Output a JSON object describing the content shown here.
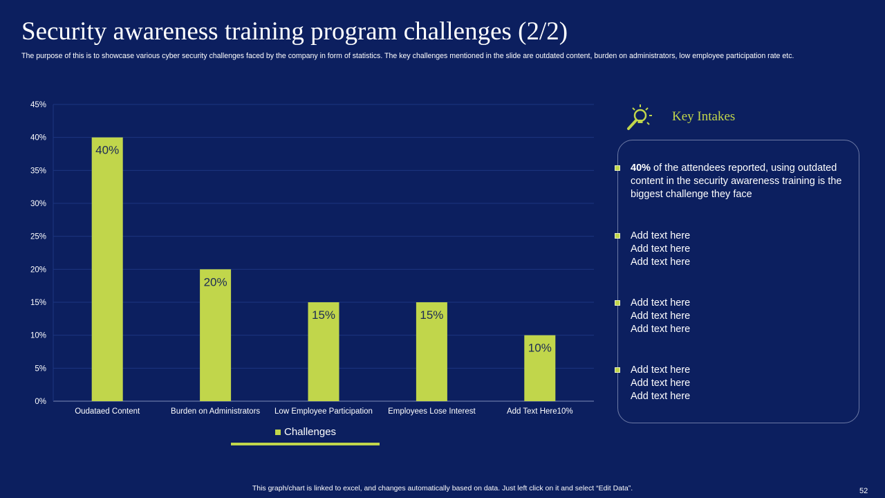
{
  "slide": {
    "title": "Security awareness training program challenges (2/2)",
    "subtitle": "The purpose of this is to showcase various cyber security challenges faced by the company in form of statistics. The key challenges mentioned in the slide are outdated content, burden on administrators, low employee participation rate etc.",
    "footer_note": "This graph/chart is linked to excel,  and changes automatically based on data. Just left click on it and select “Edit Data”.",
    "page_number": "52"
  },
  "chart_data": {
    "type": "bar",
    "categories": [
      "Oudataed Content",
      "Burden on Administrators",
      "Low Employee Participation",
      "Employees Lose Interest",
      "Add Text Here10%"
    ],
    "series": [
      {
        "name": "Challenges",
        "values": [
          40,
          20,
          15,
          15,
          10
        ],
        "color": "#c1d64b"
      }
    ],
    "data_labels": [
      "40%",
      "20%",
      "15%",
      "15%",
      "10%"
    ],
    "y_ticks": [
      "0%",
      "5%",
      "10%",
      "15%",
      "20%",
      "25%",
      "30%",
      "35%",
      "40%",
      "45%"
    ],
    "ylim": [
      0,
      45
    ],
    "grid": true,
    "legend": "bottom"
  },
  "key_intakes": {
    "title": "Key Intakes",
    "icon": "lightbulb-magnifier-icon",
    "items": [
      {
        "bold": "40%",
        "text": " of the attendees reported, using outdated content in the security awareness training is the biggest challenge they face"
      },
      {
        "lines": [
          "Add text here",
          "Add text here",
          "Add text here"
        ]
      },
      {
        "lines": [
          "Add text here",
          "Add text here",
          "Add text here"
        ]
      },
      {
        "lines": [
          "Add text here",
          "Add text here",
          "Add text here"
        ]
      }
    ]
  },
  "colors": {
    "background": "#0c1f5f",
    "accent": "#c1d64b",
    "gridline": "#1c3680"
  }
}
